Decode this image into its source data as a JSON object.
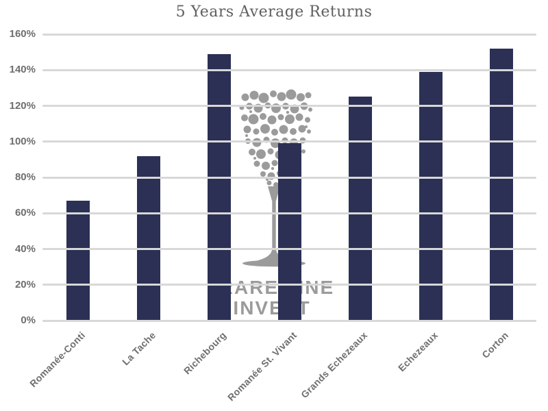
{
  "title": "5 Years Average Returns",
  "watermark": {
    "icon": "wine-glass-bubbles-icon",
    "line1": "RAREWINE",
    "line2": "INVEST"
  },
  "colors": {
    "background": "#ffffff",
    "bar": "#2b3054",
    "gridline": "#d8d8d8",
    "axis_label": "#6e6e6e",
    "title": "#5f5f5f",
    "watermark": "#9b9b9b"
  },
  "chart_data": {
    "type": "bar",
    "title": "5 Years Average Returns",
    "categories": [
      "Romanée-Conti",
      "La Tache",
      "Richebourg",
      "Romanée St. Vivant",
      "Grands Echezeaux",
      "Echezeaux",
      "Corton"
    ],
    "values": [
      67,
      92,
      149,
      99,
      125,
      139,
      152
    ],
    "unit": "%",
    "xlabel": "",
    "ylabel": "",
    "ylim": [
      0,
      160
    ],
    "ytick_step": 20,
    "ytick_labels": [
      "0%",
      "20%",
      "40%",
      "60%",
      "80%",
      "100%",
      "120%",
      "140%",
      "160%"
    ],
    "grid": true,
    "gridlines_on_top": true,
    "legend": false,
    "bar_color": "#2b3054",
    "gridline_color": "#d8d8d8"
  }
}
